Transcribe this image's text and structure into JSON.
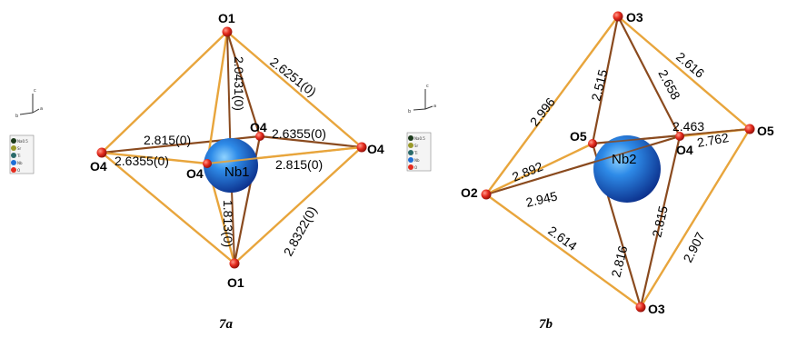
{
  "figures": [
    {
      "caption": "7a",
      "center": {
        "label": "Nb1",
        "color": "#1f6fd6"
      },
      "legend": [
        "Na0.5",
        "Sr",
        "Ti",
        "Nb",
        "O"
      ],
      "axis": [
        "c",
        "b",
        "a"
      ],
      "atoms": [
        {
          "label": "O1",
          "color": "#e52b1e"
        },
        {
          "label": "O1",
          "color": "#e52b1e"
        },
        {
          "label": "O4",
          "color": "#e52b1e"
        },
        {
          "label": "O4",
          "color": "#e52b1e"
        },
        {
          "label": "O4",
          "color": "#e52b1e"
        },
        {
          "label": "O4",
          "color": "#e52b1e"
        }
      ],
      "bond_labels": [
        "2.0431(0)",
        "2.6251(0)",
        "2.815(0)",
        "2.6355(0)",
        "2.6355(0)",
        "2.815(0)",
        "1.813(0)",
        "2.8322(0)"
      ]
    },
    {
      "caption": "7b",
      "center": {
        "label": "Nb2",
        "color": "#1f6fd6"
      },
      "legend": [
        "Na0.5",
        "Sr",
        "Ti",
        "Nb",
        "O"
      ],
      "axis": [
        "c",
        "b",
        "a"
      ],
      "atoms": [
        {
          "label": "O3",
          "color": "#e52b1e"
        },
        {
          "label": "O3",
          "color": "#e52b1e"
        },
        {
          "label": "O2",
          "color": "#e52b1e"
        },
        {
          "label": "O5",
          "color": "#e52b1e"
        },
        {
          "label": "O5",
          "color": "#e52b1e"
        },
        {
          "label": "O4",
          "color": "#e52b1e"
        }
      ],
      "bond_labels": [
        "2.996",
        "2.515",
        "2.658",
        "2.616",
        "2.463",
        "2.762",
        "2.892",
        "2.945",
        "2.614",
        "2.816",
        "2.815",
        "2.907"
      ]
    }
  ],
  "colors": {
    "bond_light": "#e8a53c",
    "bond_dark": "#8a4a1e",
    "sphere": "#1f6fd6",
    "oxygen": "#e52b1e"
  }
}
